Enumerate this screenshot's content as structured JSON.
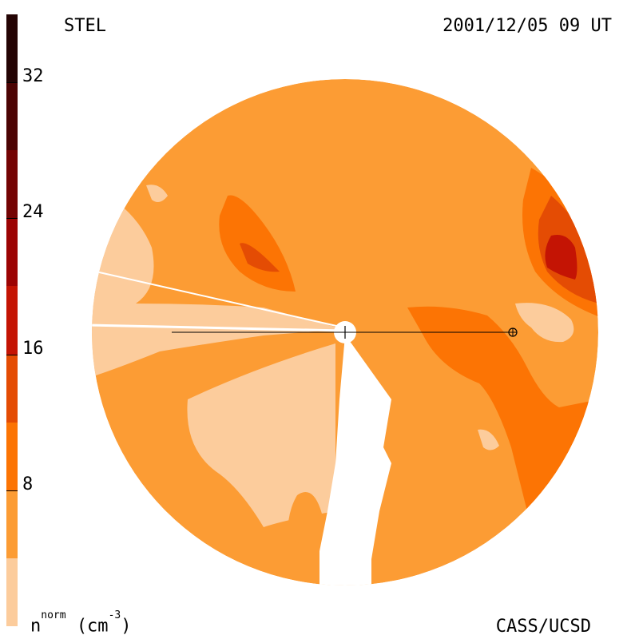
{
  "header": {
    "instrument": "STEL",
    "timestamp": "2001/12/05 09 UT"
  },
  "footer": {
    "credit": "CASS/UCSD"
  },
  "colorbar": {
    "quantity": "n",
    "superscript_1": "norm",
    "unit_open": "(cm",
    "superscript_2": "-3",
    "unit_close": ")",
    "min": 0,
    "max": 36,
    "ticks": [
      "32",
      "24",
      "16",
      "8"
    ],
    "levels": [
      {
        "from": 0,
        "to": 4,
        "color": "#fccc9c"
      },
      {
        "from": 4,
        "to": 8,
        "color": "#fc9c34"
      },
      {
        "from": 8,
        "to": 12,
        "color": "#fc7404"
      },
      {
        "from": 12,
        "to": 16,
        "color": "#e44c04"
      },
      {
        "from": 16,
        "to": 20,
        "color": "#c41404"
      },
      {
        "from": 20,
        "to": 24,
        "color": "#9c0404"
      },
      {
        "from": 24,
        "to": 28,
        "color": "#740404"
      },
      {
        "from": 28,
        "to": 32,
        "color": "#4c0404"
      },
      {
        "from": 32,
        "to": 36,
        "color": "#240404"
      }
    ]
  },
  "map": {
    "background_color": "#fc9c34",
    "sun_symbol": "sun-marker",
    "earth_symbol": "earth-marker"
  }
}
